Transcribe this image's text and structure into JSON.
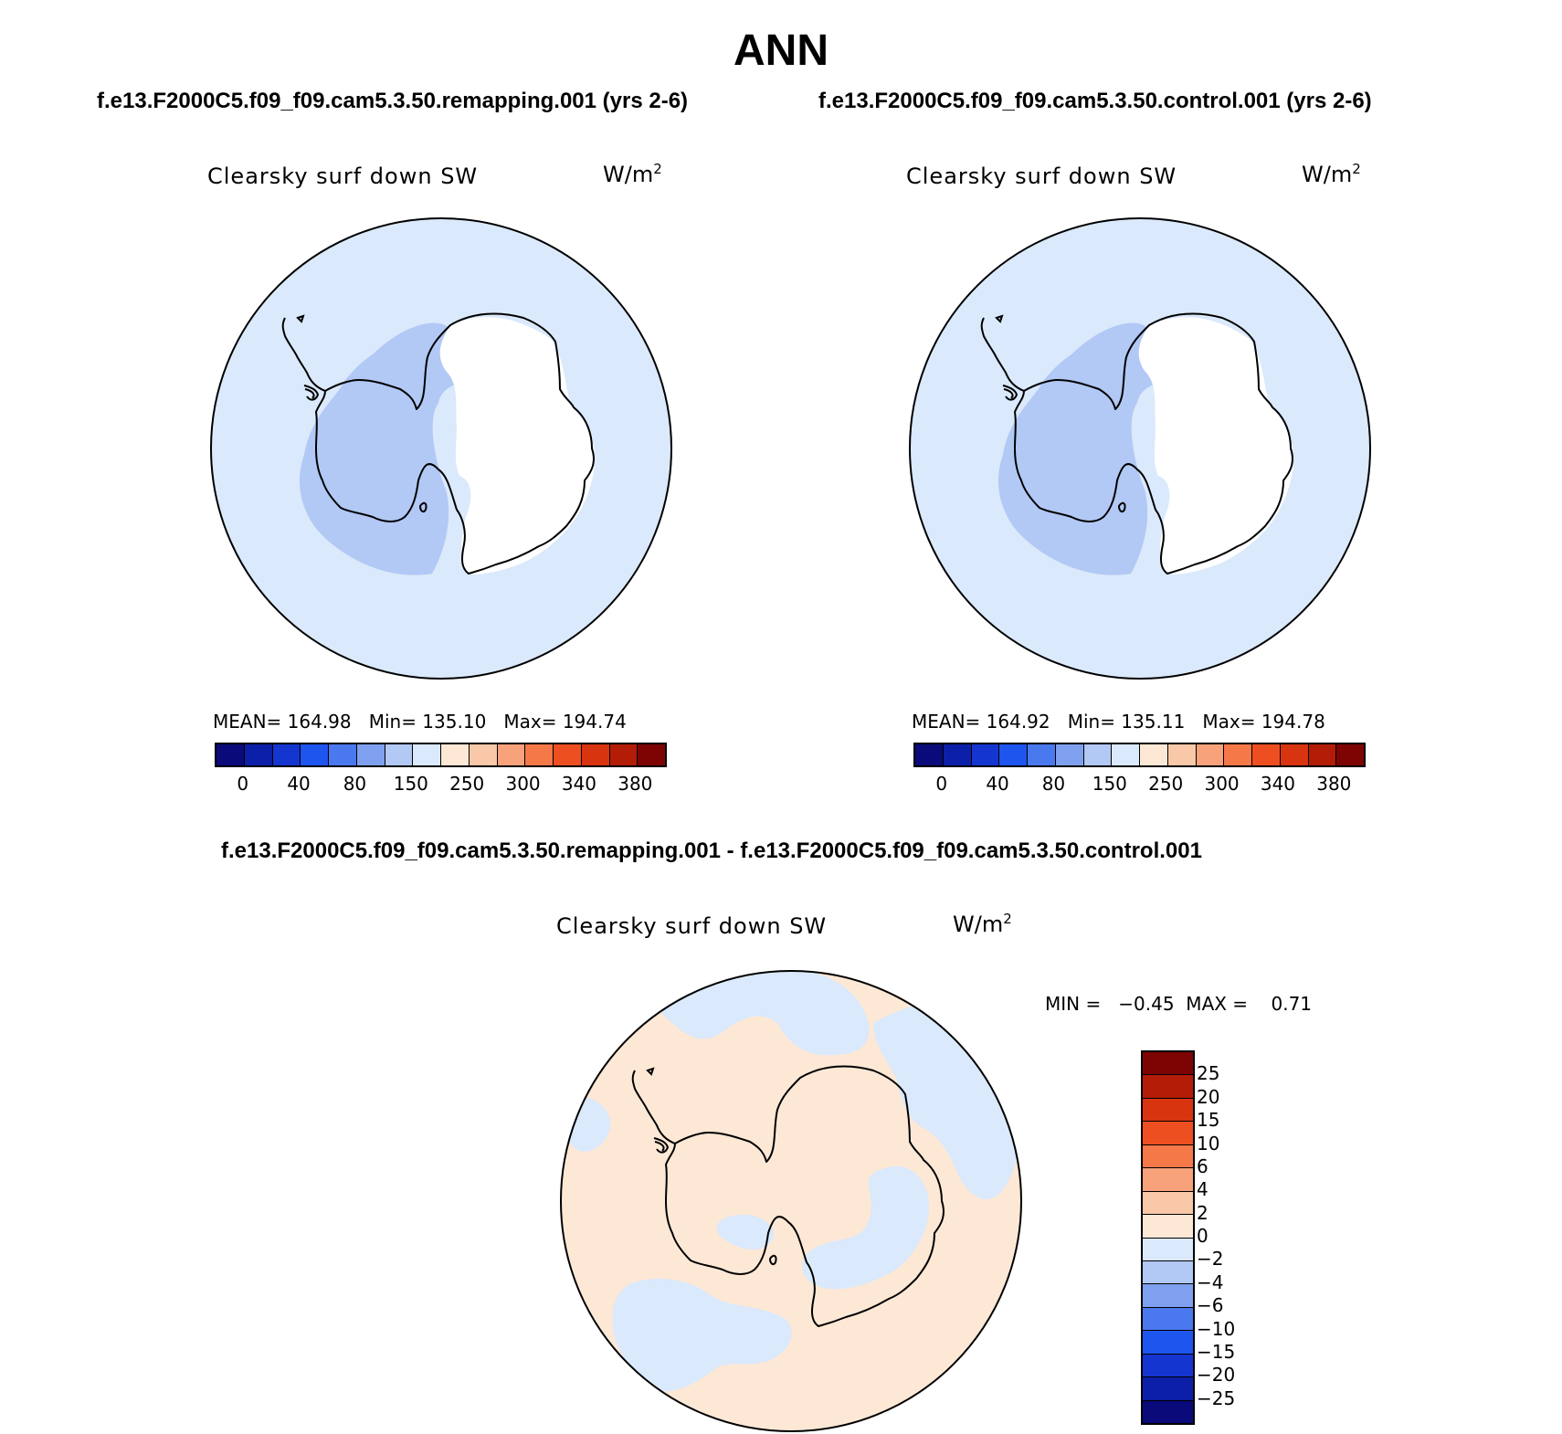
{
  "title": "ANN",
  "panels": [
    {
      "case": "f.e13.F2000C5.f09_f09.cam5.3.50.remapping.001 (yrs 2-6)",
      "variable": "Clearsky surf down SW",
      "units_base": "W/m",
      "units_exp": "2",
      "stats": "MEAN= 164.98   Min= 135.10   Max= 194.74"
    },
    {
      "case": "f.e13.F2000C5.f09_f09.cam5.3.50.control.001 (yrs 2-6)",
      "variable": "Clearsky surf down SW",
      "units_base": "W/m",
      "units_exp": "2",
      "stats": "MEAN= 164.92   Min= 135.11   Max= 194.78"
    }
  ],
  "diff_panel": {
    "case": "f.e13.F2000C5.f09_f09.cam5.3.50.remapping.001 - f.e13.F2000C5.f09_f09.cam5.3.50.control.001",
    "variable": "Clearsky surf down SW",
    "units_base": "W/m",
    "units_exp": "2",
    "stats": "MIN =   −0.45  MAX =    0.71"
  },
  "colorbar_abs": {
    "colors": [
      "#0a0a7a",
      "#0c1fa8",
      "#1535d0",
      "#1e55ee",
      "#4a78ee",
      "#7fa0ee",
      "#b2c8f5",
      "#dae9fb",
      "#fde8d6",
      "#f8c8a8",
      "#f7a27a",
      "#f57848",
      "#ee4f20",
      "#d83410",
      "#b31d08",
      "#7e0404"
    ],
    "labels": [
      "0",
      "40",
      "80",
      "150",
      "250",
      "300",
      "340",
      "380"
    ]
  },
  "colorbar_diff": {
    "colors": [
      "#7e0404",
      "#b31d08",
      "#d83410",
      "#ee4f20",
      "#f57848",
      "#f7a27a",
      "#f8c8a8",
      "#fde8d6",
      "#dae9fb",
      "#b2c8f5",
      "#7fa0ee",
      "#4a78ee",
      "#1e55ee",
      "#1535d0",
      "#0c1fa8",
      "#0a0a7a"
    ],
    "labels": [
      "25",
      "20",
      "15",
      "10",
      "6",
      "4",
      "2",
      "0",
      "−2",
      "−4",
      "−6",
      "−10",
      "−15",
      "−20",
      "−25"
    ]
  },
  "map_colors": {
    "ocean_light_blue": "#dae9fb",
    "interior_blue": "#b2c8f5",
    "east_antarctica": "#ffffff",
    "diff_positive_peach": "#fde8d6",
    "diff_negative_blue": "#dae9fb"
  }
}
